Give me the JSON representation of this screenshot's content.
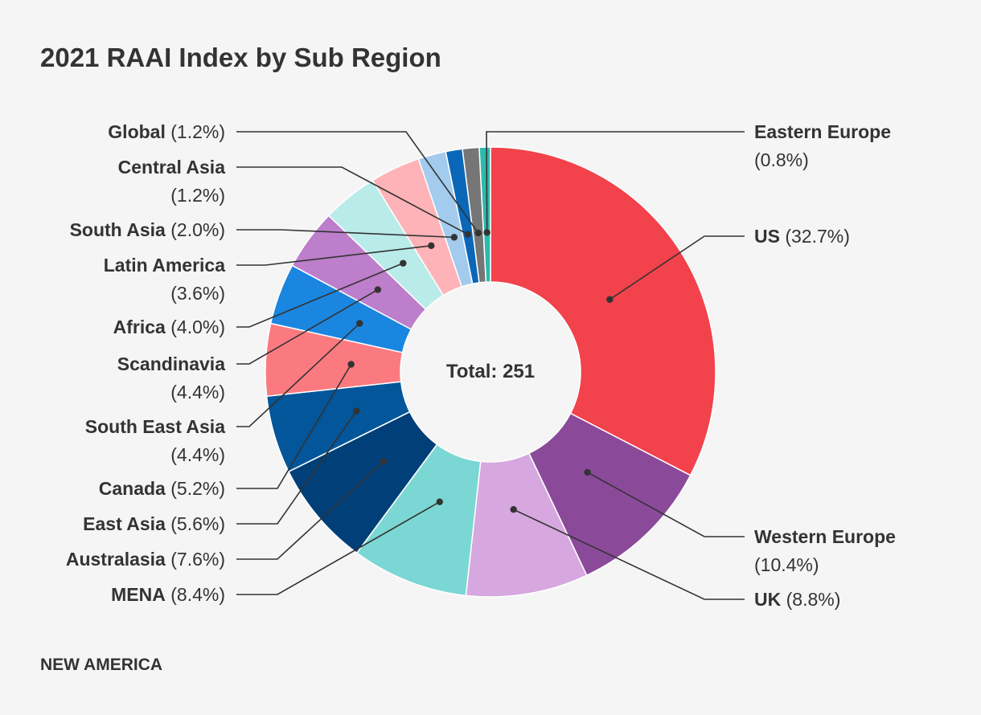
{
  "chart_data": {
    "type": "pie",
    "variant": "donut",
    "title": "2021 RAAI Index by Sub Region",
    "center_label": "Total: 251",
    "source": "NEW AMERICA",
    "slices": [
      {
        "name": "US",
        "pct_label": "(32.7%)",
        "value": 32.7,
        "color": "#f2424b"
      },
      {
        "name": "Western Europe",
        "pct_label": "(10.4%)",
        "value": 10.4,
        "color": "#8b4a99"
      },
      {
        "name": "UK",
        "pct_label": "(8.8%)",
        "value": 8.8,
        "color": "#d6a8df"
      },
      {
        "name": "MENA",
        "pct_label": "(8.4%)",
        "value": 8.4,
        "color": "#7bd7d3"
      },
      {
        "name": "Australasia",
        "pct_label": "(7.6%)",
        "value": 7.6,
        "color": "#003f77"
      },
      {
        "name": "East Asia",
        "pct_label": "(5.6%)",
        "value": 5.6,
        "color": "#025699"
      },
      {
        "name": "Canada",
        "pct_label": "(5.2%)",
        "value": 5.2,
        "color": "#fa7a80"
      },
      {
        "name": "South East Asia",
        "pct_label": "(4.4%)",
        "value": 4.4,
        "color": "#1a86e0"
      },
      {
        "name": "Scandinavia",
        "pct_label": "(4.4%)",
        "value": 4.4,
        "color": "#bd7ecb"
      },
      {
        "name": "Africa",
        "pct_label": "(4.0%)",
        "value": 4.0,
        "color": "#b9ebe9"
      },
      {
        "name": "Latin America",
        "pct_label": "(3.6%)",
        "value": 3.6,
        "color": "#fdb3b7"
      },
      {
        "name": "South Asia",
        "pct_label": "(2.0%)",
        "value": 2.0,
        "color": "#a3cbee"
      },
      {
        "name": "Central Asia",
        "pct_label": "(1.2%)",
        "value": 1.2,
        "color": "#0a67b8"
      },
      {
        "name": "Global",
        "pct_label": "(1.2%)",
        "value": 1.2,
        "color": "#767676"
      },
      {
        "name": "Eastern Europe",
        "pct_label": "(0.8%)",
        "value": 0.8,
        "color": "#2fb9ac"
      }
    ]
  }
}
